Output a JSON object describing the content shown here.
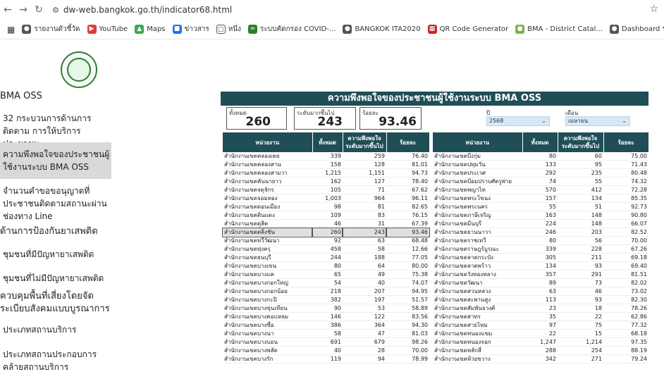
{
  "browser": {
    "url": "dw-web.bangkok.go.th/indicator68.html",
    "bookmarks": [
      "รายงานตัวชี้วัด",
      "YouTube",
      "Maps",
      "ข่าวสาร",
      "หนึ่ง",
      "ระบบคัดกรอง COVID-...",
      "BANGKOK ITA2020",
      "QR Code Generator",
      "BMA - District Catal...",
      "Dashboard ระบบบันที่..."
    ]
  },
  "sidebar": {
    "items": [
      "BMA OSS",
      "32 กระบวนการด้านการติดตาม การให้บริการประชาชน",
      "ความพึงพอใจของประชาชนผู้ ใช้งานระบบ BMA OSS",
      "จำนวนคำขอขอนุญาตที่ ประชาชนติดตามสถานะผ่าน ช่องทาง Line",
      "ด้านการป้องกันยาเสพติด",
      "ชุมชนที่มีปัญหายาเสพติด",
      "ชุมชนที่ไม่มีปัญหายาเสพติด",
      "ควบคุมพื้นที่เสี่ยงโดยจัด ระเบียบสังคมแบบบูรณาการ",
      "ประเภทสถานบริการ",
      "ประเภทสถานประกอบการ คล้ายสถานบริการ"
    ]
  },
  "dashboard": {
    "title": "ความพึงพอใจของประชาชนผู้ใช้งานระบบ BMA OSS",
    "kpis": [
      {
        "label": "ทั้งหมด",
        "value": "260"
      },
      {
        "label": "ระดับมากขึ้นไป",
        "value": "243"
      },
      {
        "label": "ร้อยละ",
        "value": "93.46"
      }
    ],
    "filters": {
      "year_label": "ปี",
      "year_value": "2568",
      "month_label": "เดือน",
      "month_value": "เมษายน"
    },
    "columns": [
      "หน่วยงาน",
      "ทั้งหมด",
      "ความพึงพอใจ ระดับมากขึ้นไป",
      "ร้อยละ"
    ],
    "left_rows": [
      [
        "สำนักงานเขตคลองเตย",
        "339",
        "259",
        "76.40"
      ],
      [
        "สำนักงานเขตคลองสาน",
        "158",
        "128",
        "81.01"
      ],
      [
        "สำนักงานเขตคลองสามวา",
        "1,215",
        "1,151",
        "94.73"
      ],
      [
        "สำนักงานเขตคันนายาว",
        "162",
        "127",
        "78.40"
      ],
      [
        "สำนักงานเขตจตุจักร",
        "105",
        "71",
        "67.62"
      ],
      [
        "สำนักงานเขตจอมทอง",
        "1,003",
        "964",
        "96.11"
      ],
      [
        "สำนักงานเขตดอนเมือง",
        "98",
        "81",
        "82.65"
      ],
      [
        "สำนักงานเขตดินแดง",
        "109",
        "83",
        "76.15"
      ],
      [
        "สำนักงานเขตดุสิต",
        "46",
        "31",
        "67.39"
      ],
      [
        "สำนักงานเขตตลิ่งชัน",
        "260",
        "243",
        "93.46"
      ],
      [
        "สำนักงานเขตทวีวัฒนา",
        "92",
        "63",
        "68.48"
      ],
      [
        "สำนักงานเขตทุ่งครุ",
        "458",
        "58",
        "12.66"
      ],
      [
        "สำนักงานเขตธนบุรี",
        "244",
        "188",
        "77.05"
      ],
      [
        "สำนักงานเขตบางเขน",
        "80",
        "64",
        "80.00"
      ],
      [
        "สำนักงานเขตบางแค",
        "65",
        "49",
        "75.38"
      ],
      [
        "สำนักงานเขตบางกอกใหญ่",
        "54",
        "40",
        "74.07"
      ],
      [
        "สำนักงานเขตบางกอกน้อย",
        "218",
        "207",
        "94.95"
      ],
      [
        "สำนักงานเขตบางกะปิ",
        "382",
        "197",
        "51.57"
      ],
      [
        "สำนักงานเขตบางขุนเทียน",
        "90",
        "53",
        "58.89"
      ],
      [
        "สำนักงานเขตบางคอแหลม",
        "146",
        "122",
        "83.56"
      ],
      [
        "สำนักงานเขตบางซื่อ",
        "386",
        "364",
        "94.30"
      ],
      [
        "สำนักงานเขตบางนา",
        "58",
        "47",
        "81.03"
      ],
      [
        "สำนักงานเขตบางบอน",
        "691",
        "679",
        "98.26"
      ],
      [
        "สำนักงานเขตบางพลัด",
        "40",
        "28",
        "70.00"
      ],
      [
        "สำนักงานเขตบางรัก",
        "119",
        "94",
        "78.99"
      ]
    ],
    "highlight_row": "สำนักงานเขตตลิ่งชัน",
    "right_rows": [
      [
        "สำนักงานเขตบึงกุ่ม",
        "80",
        "60",
        "75.00"
      ],
      [
        "สำนักงานเขตปทุมวัน",
        "133",
        "95",
        "71.43"
      ],
      [
        "สำนักงานเขตประเวศ",
        "292",
        "235",
        "80.48"
      ],
      [
        "สำนักงานเขตป้อมปราบศัตรูพ่าย",
        "74",
        "55",
        "74.32"
      ],
      [
        "สำนักงานเขตพญาไท",
        "570",
        "412",
        "72.28"
      ],
      [
        "สำนักงานเขตพระโขนง",
        "157",
        "134",
        "85.35"
      ],
      [
        "สำนักงานเขตพระนคร",
        "55",
        "51",
        "92.73"
      ],
      [
        "สำนักงานเขตภาษีเจริญ",
        "163",
        "148",
        "90.80"
      ],
      [
        "สำนักงานเขตมีนบุรี",
        "224",
        "148",
        "66.07"
      ],
      [
        "สำนักงานเขตยานนาวา",
        "246",
        "203",
        "82.52"
      ],
      [
        "สำนักงานเขตราชเทวี",
        "80",
        "56",
        "70.00"
      ],
      [
        "สำนักงานเขตราษฎร์บูรณะ",
        "339",
        "228",
        "67.26"
      ],
      [
        "สำนักงานเขตลาดกระบัง",
        "305",
        "211",
        "69.18"
      ],
      [
        "สำนักงานเขตลาดพร้าว",
        "134",
        "93",
        "69.40"
      ],
      [
        "สำนักงานเขตวังทองหลาง",
        "357",
        "291",
        "81.51"
      ],
      [
        "สำนักงานเขตวัฒนา",
        "89",
        "73",
        "82.02"
      ],
      [
        "สำนักงานเขตสวนหลวง",
        "63",
        "46",
        "73.02"
      ],
      [
        "สำนักงานเขตสะพานสูง",
        "113",
        "93",
        "82.30"
      ],
      [
        "สำนักงานเขตสัมพันธวงศ์",
        "23",
        "18",
        "78.26"
      ],
      [
        "สำนักงานเขตสาทร",
        "35",
        "22",
        "62.86"
      ],
      [
        "สำนักงานเขตสายไหม",
        "97",
        "75",
        "77.32"
      ],
      [
        "สำนักงานเขตหนองแขม",
        "22",
        "15",
        "68.18"
      ],
      [
        "สำนักงานเขตหนองจอก",
        "1,247",
        "1,214",
        "97.35"
      ],
      [
        "สำนักงานเขตหลักสี่",
        "288",
        "254",
        "88.19"
      ],
      [
        "สำนักงานเขตห้วยขวาง",
        "342",
        "271",
        "79.24"
      ]
    ]
  }
}
